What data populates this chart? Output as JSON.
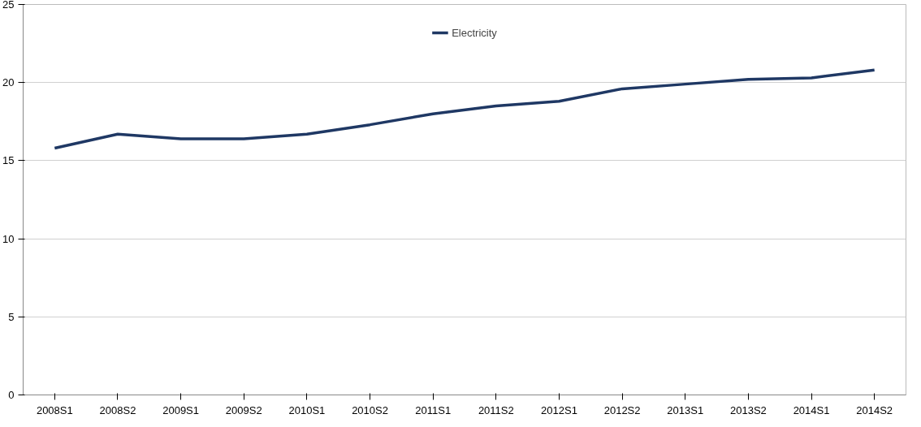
{
  "chart_data": {
    "type": "line",
    "categories": [
      "2008S1",
      "2008S2",
      "2009S1",
      "2009S2",
      "2010S1",
      "2010S2",
      "2011S1",
      "2011S2",
      "2012S1",
      "2012S2",
      "2013S1",
      "2013S2",
      "2014S1",
      "2014S2"
    ],
    "series": [
      {
        "name": "Electricity",
        "color": "#1f3864",
        "values": [
          15.8,
          16.7,
          16.4,
          16.4,
          16.7,
          17.3,
          18.0,
          18.5,
          18.8,
          19.6,
          19.9,
          20.2,
          20.3,
          20.8
        ]
      }
    ],
    "ylim": [
      0,
      25
    ],
    "yticks": [
      0,
      5,
      10,
      15,
      20,
      25
    ],
    "grid": "y",
    "legend": "top",
    "marker": "none",
    "line_style": "solid"
  }
}
